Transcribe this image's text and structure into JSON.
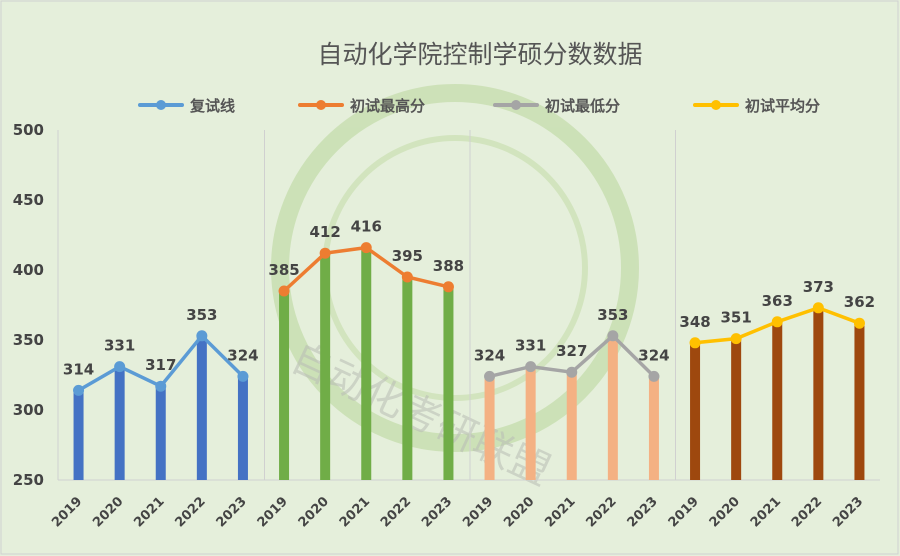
{
  "chart_data": {
    "type": "bar+line",
    "title": "自动化学院控制学硕分数数据",
    "ylim": [
      250,
      500
    ],
    "yticks": [
      250,
      300,
      350,
      400,
      450,
      500
    ],
    "grid": false,
    "legend_position": "top",
    "series": [
      {
        "name": "复试线",
        "x": [
          "2019",
          "2020",
          "2021",
          "2022",
          "2023"
        ],
        "values": [
          314,
          331,
          317,
          353,
          324
        ],
        "line_color": "#5b9bd5",
        "bar_color": "#4472c4"
      },
      {
        "name": "初试最高分",
        "x": [
          "2019",
          "2020",
          "2021",
          "2022",
          "2023"
        ],
        "values": [
          385,
          412,
          416,
          395,
          388
        ],
        "line_color": "#ed7d31",
        "bar_color": "#70ad47"
      },
      {
        "name": "初试最低分",
        "x": [
          "2019",
          "2020",
          "2021",
          "2022",
          "2023"
        ],
        "values": [
          324,
          331,
          327,
          353,
          324
        ],
        "line_color": "#a5a5a5",
        "bar_color": "#f4b183"
      },
      {
        "name": "初试平均分",
        "x": [
          "2019",
          "2020",
          "2021",
          "2022",
          "2023"
        ],
        "values": [
          348,
          351,
          363,
          373,
          362
        ],
        "line_color": "#ffc000",
        "bar_color": "#9e480e"
      }
    ],
    "watermark": "自动化考研联盟 AUTOMATIC POSTGRADUATE ENTRANCE EXAMINATION ALLIANCE"
  }
}
